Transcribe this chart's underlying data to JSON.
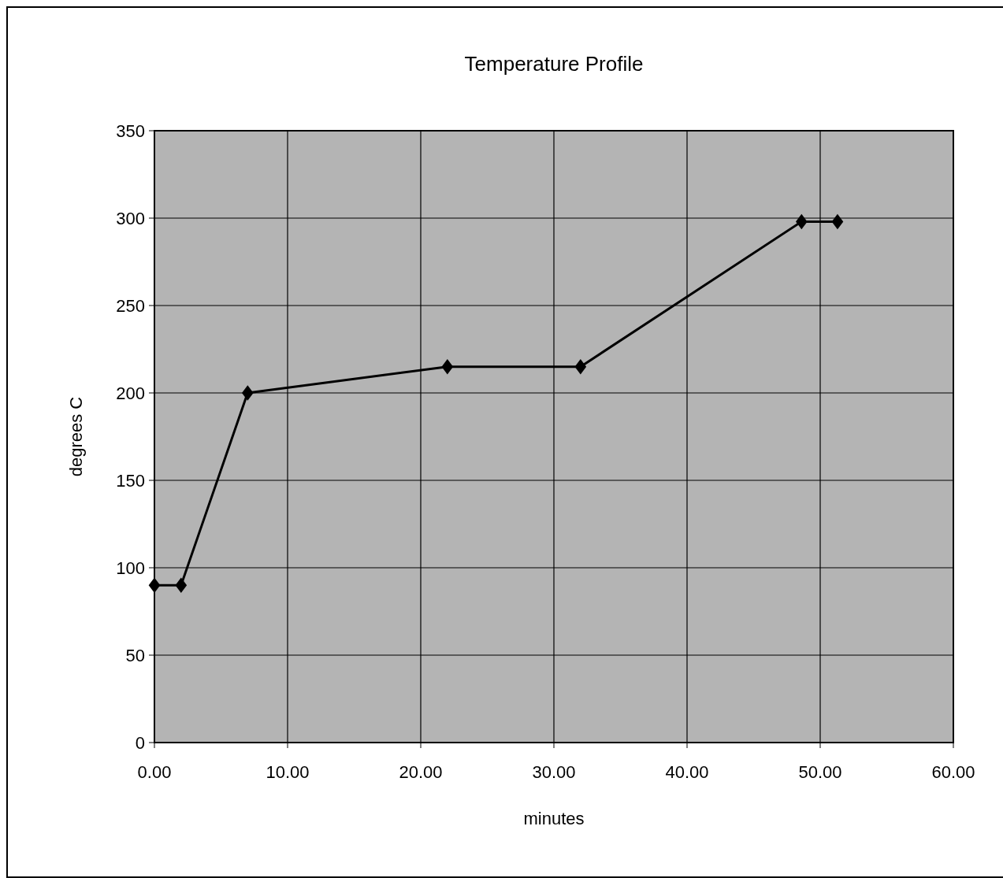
{
  "chart_data": {
    "type": "line",
    "title": "Temperature Profile",
    "xlabel": "minutes",
    "ylabel": "degrees C",
    "x": [
      0,
      2,
      7,
      22,
      32,
      48.6,
      51.3
    ],
    "series": [
      {
        "color": "#000000",
        "values": [
          90,
          90,
          200,
          215,
          215,
          298,
          298
        ]
      }
    ],
    "xlim": [
      0,
      60
    ],
    "xticks": [
      {
        "value": 0,
        "label": "0.00"
      },
      {
        "value": 10,
        "label": "10.00"
      },
      {
        "value": 20,
        "label": "20.00"
      },
      {
        "value": 30,
        "label": "30.00"
      },
      {
        "value": 40,
        "label": "40.00"
      },
      {
        "value": 50,
        "label": "50.00"
      },
      {
        "value": 60,
        "label": "60.00"
      }
    ],
    "ylim": [
      0,
      350
    ],
    "yticks": [
      0,
      50,
      100,
      150,
      200,
      250,
      300,
      350
    ],
    "grid": true,
    "marker": "diamond",
    "line_style": "solid"
  }
}
